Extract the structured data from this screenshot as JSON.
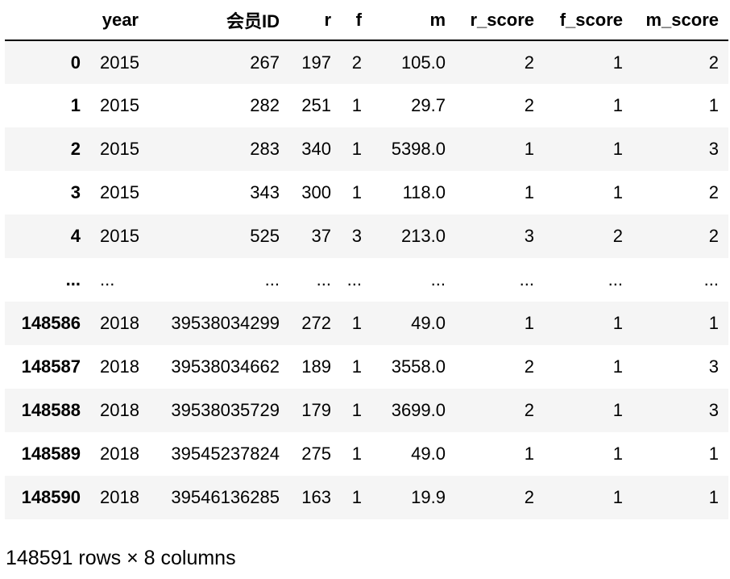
{
  "table": {
    "index_header": "",
    "columns": [
      "year",
      "会员ID",
      "r",
      "f",
      "m",
      "r_score",
      "f_score",
      "m_score"
    ],
    "rows": [
      {
        "index": "0",
        "cells": [
          "2015",
          "267",
          "197",
          "2",
          "105.0",
          "2",
          "1",
          "2"
        ]
      },
      {
        "index": "1",
        "cells": [
          "2015",
          "282",
          "251",
          "1",
          "29.7",
          "2",
          "1",
          "1"
        ]
      },
      {
        "index": "2",
        "cells": [
          "2015",
          "283",
          "340",
          "1",
          "5398.0",
          "1",
          "1",
          "3"
        ]
      },
      {
        "index": "3",
        "cells": [
          "2015",
          "343",
          "300",
          "1",
          "118.0",
          "1",
          "1",
          "2"
        ]
      },
      {
        "index": "4",
        "cells": [
          "2015",
          "525",
          "37",
          "3",
          "213.0",
          "3",
          "2",
          "2"
        ]
      },
      {
        "index": "...",
        "cells": [
          "...",
          "...",
          "...",
          "...",
          "...",
          "...",
          "...",
          "..."
        ]
      },
      {
        "index": "148586",
        "cells": [
          "2018",
          "39538034299",
          "272",
          "1",
          "49.0",
          "1",
          "1",
          "1"
        ]
      },
      {
        "index": "148587",
        "cells": [
          "2018",
          "39538034662",
          "189",
          "1",
          "3558.0",
          "2",
          "1",
          "3"
        ]
      },
      {
        "index": "148588",
        "cells": [
          "2018",
          "39538035729",
          "179",
          "1",
          "3699.0",
          "2",
          "1",
          "3"
        ]
      },
      {
        "index": "148589",
        "cells": [
          "2018",
          "39545237824",
          "275",
          "1",
          "49.0",
          "1",
          "1",
          "1"
        ]
      },
      {
        "index": "148590",
        "cells": [
          "2018",
          "39546136285",
          "163",
          "1",
          "19.9",
          "2",
          "1",
          "1"
        ]
      }
    ]
  },
  "footer": {
    "shape_text": "148591 rows × 8 columns"
  }
}
